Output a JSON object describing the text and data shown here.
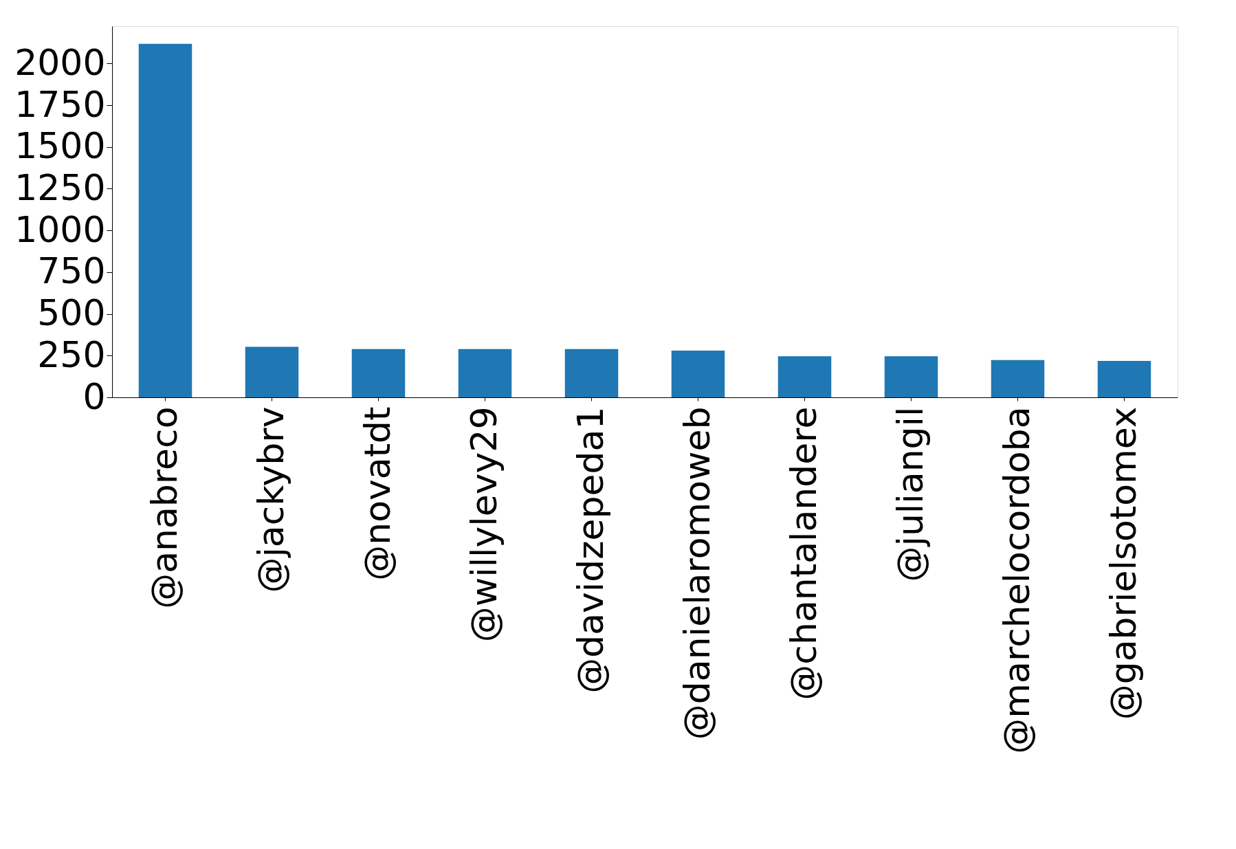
{
  "chart_data": {
    "type": "bar",
    "categories": [
      "@anabreco",
      "@jackybrv",
      "@novatdt",
      "@willylevy29",
      "@davidzepeda1",
      "@danielaromoweb",
      "@chantalandere",
      "@juliangil",
      "@marchelocordoba",
      "@gabrielsotomex"
    ],
    "values": [
      2118,
      303,
      289,
      289,
      289,
      280,
      246,
      246,
      223,
      218
    ],
    "color": "#1f77b4",
    "ylim": [
      0,
      2224
    ],
    "yticks": [
      0,
      250,
      500,
      750,
      1000,
      1250,
      1500,
      1750,
      2000
    ],
    "grid": false
  }
}
